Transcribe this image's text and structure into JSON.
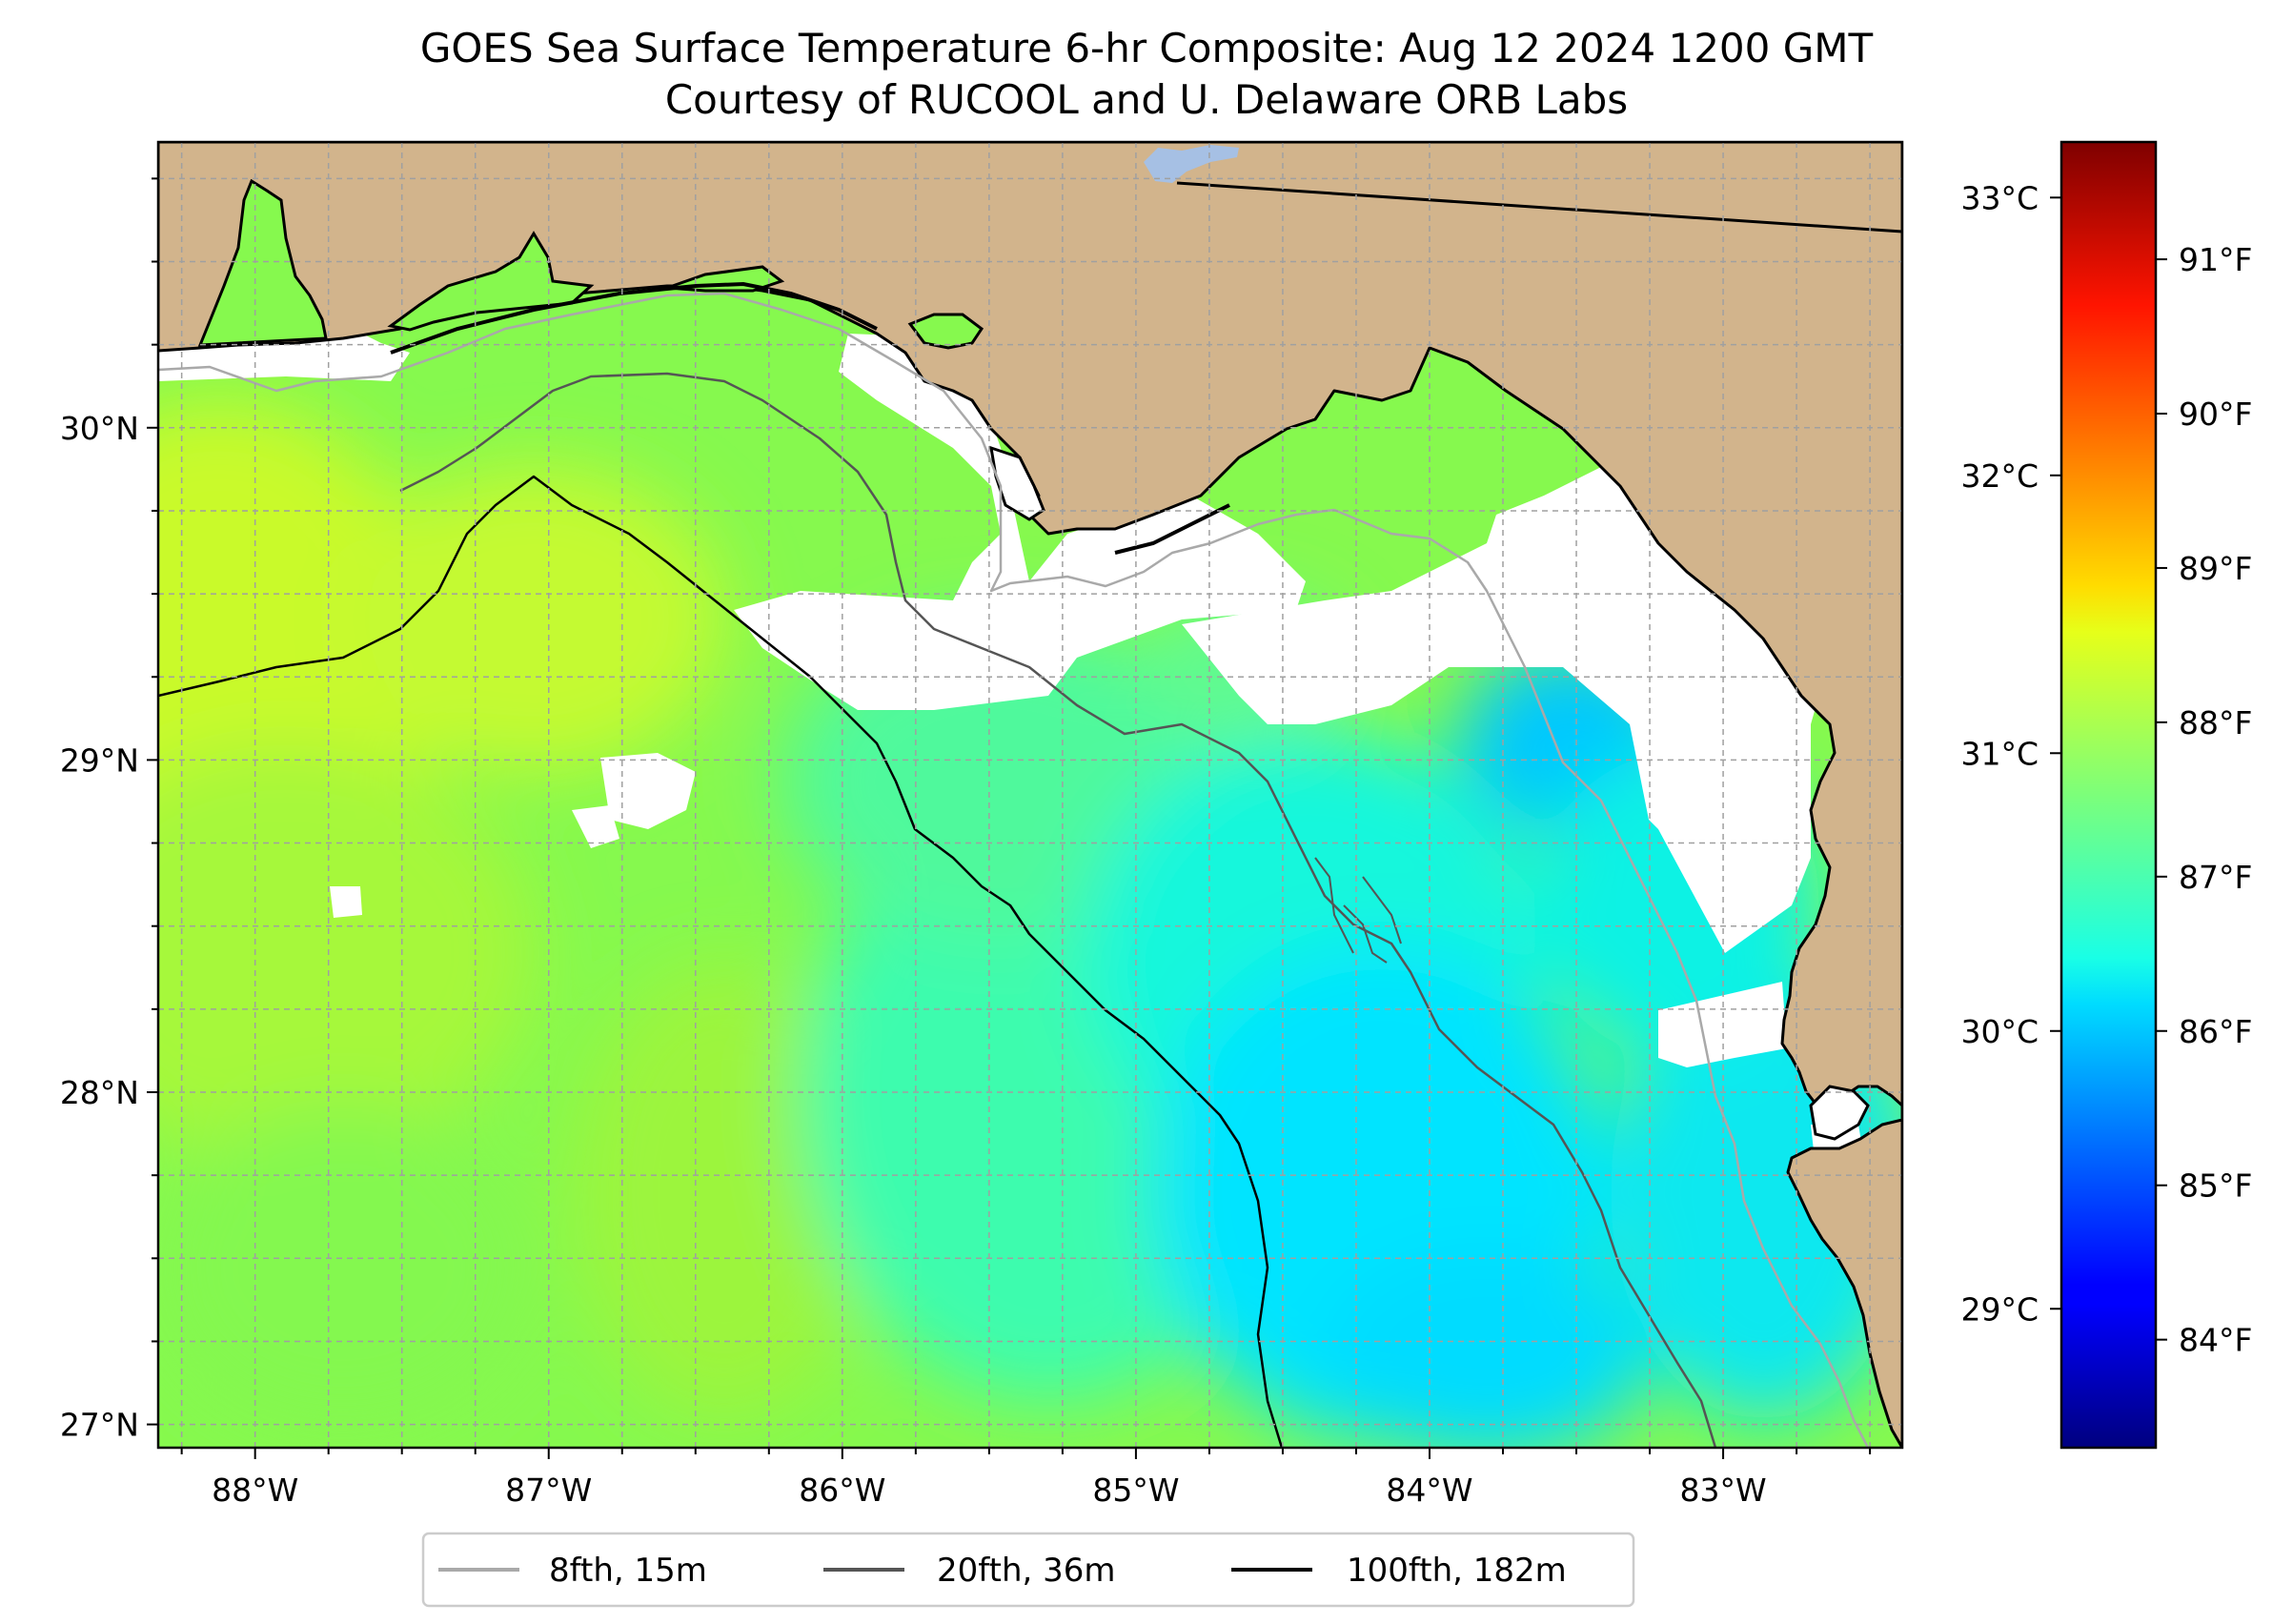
{
  "title": {
    "line1": "GOES Sea Surface Temperature 6-hr Composite: Aug 12 2024 1200 GMT",
    "line2": "Courtesy of RUCOOL and U. Delaware ORB Labs"
  },
  "map": {
    "lon_range": [
      -88.33,
      -82.39
    ],
    "lat_range": [
      26.93,
      30.86
    ],
    "lon_ticks": [
      {
        "value": -88,
        "label": "88°W"
      },
      {
        "value": -87,
        "label": "87°W"
      },
      {
        "value": -86,
        "label": "86°W"
      },
      {
        "value": -85,
        "label": "85°W"
      },
      {
        "value": -84,
        "label": "84°W"
      },
      {
        "value": -83,
        "label": "83°W"
      }
    ],
    "lat_ticks": [
      {
        "value": 30,
        "label": "30°N"
      },
      {
        "value": 29,
        "label": "29°N"
      },
      {
        "value": 28,
        "label": "28°N"
      },
      {
        "value": 27,
        "label": "27°N"
      }
    ],
    "gridlines": true,
    "grid_step_deg": 0.25,
    "colors": {
      "land": "#d2b48c",
      "no_data": "#ffffff",
      "lake": "#a6c0e4",
      "coastline": "#000000",
      "grid": "#a0a0a0"
    }
  },
  "colorbar": {
    "colormap": "jet",
    "celsius_range": [
      28.5,
      33.2
    ],
    "celsius_ticks": [
      {
        "value": 29,
        "label": "29°C"
      },
      {
        "value": 30,
        "label": "30°C"
      },
      {
        "value": 31,
        "label": "31°C"
      },
      {
        "value": 32,
        "label": "32°C"
      },
      {
        "value": 33,
        "label": "33°C"
      }
    ],
    "fahrenheit_ticks": [
      {
        "value": 84,
        "label": "84°F"
      },
      {
        "value": 85,
        "label": "85°F"
      },
      {
        "value": 86,
        "label": "86°F"
      },
      {
        "value": 87,
        "label": "87°F"
      },
      {
        "value": 88,
        "label": "88°F"
      },
      {
        "value": 89,
        "label": "89°F"
      },
      {
        "value": 90,
        "label": "90°F"
      },
      {
        "value": 91,
        "label": "91°F"
      }
    ]
  },
  "legend": {
    "placement": "bottom-center",
    "items": [
      {
        "label": "8fth, 15m",
        "color": "#a9a9a9"
      },
      {
        "label": "20fth, 36m",
        "color": "#555555"
      },
      {
        "label": "100fth, 182m",
        "color": "#000000"
      }
    ]
  }
}
